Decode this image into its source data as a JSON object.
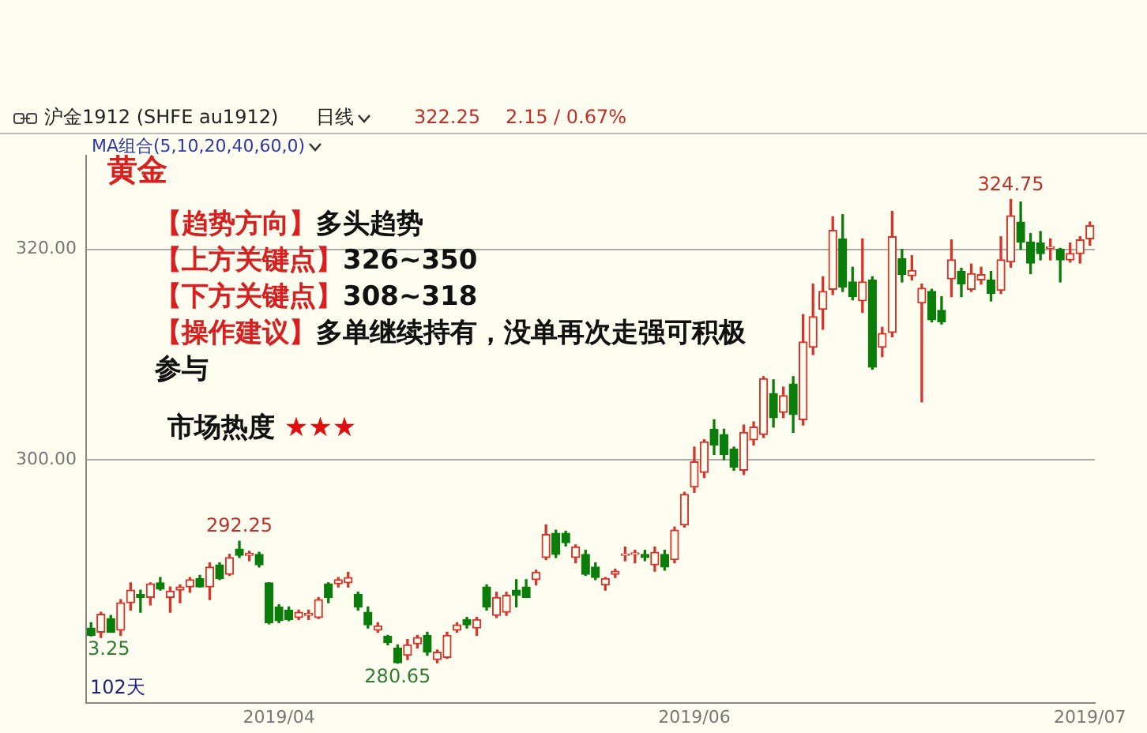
{
  "chart_data": {
    "type": "candlestick",
    "title": "沪金1912 (SHFE au1912)",
    "annotations": [
      "日线",
      "322.25",
      "2.15 / 0.67%",
      "MA组合(5,10,20,40,60,0)",
      "黄金",
      "【趋势方向】多头趋势",
      "【上方关键点】326~350",
      "【下方关键点】308~318",
      "【操作建议】多单继续持有，没单再次走强可积极参与",
      "市场热度 ★★★",
      "102天",
      {
        "text": "292.25",
        "y": 292.25
      },
      {
        "text": "324.75",
        "y": 324.75
      },
      {
        "text": "280.65",
        "y": 280.65
      },
      {
        "text": "3.25",
        "y": 283.25
      }
    ],
    "categories": [
      null,
      null,
      null,
      null,
      null,
      null,
      null,
      null,
      null,
      null,
      null,
      null,
      null,
      null,
      null,
      null,
      null,
      null,
      null,
      "2019/04",
      null,
      null,
      null,
      null,
      null,
      null,
      null,
      null,
      null,
      null,
      null,
      null,
      null,
      null,
      null,
      null,
      null,
      null,
      null,
      null,
      null,
      null,
      null,
      null,
      null,
      null,
      null,
      null,
      null,
      null,
      null,
      null,
      null,
      null,
      null,
      null,
      null,
      null,
      null,
      null,
      null,
      "2019/06",
      null,
      null,
      null,
      null,
      null,
      null,
      null,
      null,
      null,
      null,
      null,
      null,
      null,
      null,
      null,
      null,
      null,
      null,
      null,
      null,
      null,
      null,
      null,
      null,
      null,
      null,
      null,
      null,
      null,
      null,
      null,
      null,
      null,
      null,
      null,
      null,
      null,
      null,
      null,
      "2019/07"
    ],
    "ohlc": [
      [
        284.0,
        284.5,
        283.25,
        283.3
      ],
      [
        283.6,
        285.5,
        283.1,
        285.3
      ],
      [
        284.9,
        285.2,
        283.6,
        283.6
      ],
      [
        283.8,
        286.7,
        283.3,
        286.4
      ],
      [
        286.4,
        288.3,
        285.7,
        287.6
      ],
      [
        287.2,
        287.6,
        285.5,
        286.9
      ],
      [
        286.9,
        288.3,
        286.2,
        288.2
      ],
      [
        288.3,
        288.8,
        287.6,
        287.7
      ],
      [
        286.9,
        287.9,
        285.5,
        287.5
      ],
      [
        287.6,
        288.1,
        286.4,
        287.9
      ],
      [
        287.9,
        288.8,
        287.4,
        288.6
      ],
      [
        288.7,
        289.0,
        287.9,
        287.9
      ],
      [
        287.9,
        290.2,
        286.7,
        289.8
      ],
      [
        290.0,
        290.2,
        288.6,
        288.7
      ],
      [
        289.1,
        291.0,
        289.0,
        290.7
      ],
      [
        291.5,
        292.25,
        290.7,
        290.9
      ],
      [
        290.9,
        291.3,
        290.4,
        291.1
      ],
      [
        291.0,
        291.2,
        289.8,
        290.0
      ],
      [
        288.3,
        288.3,
        284.4,
        284.5
      ],
      [
        286.0,
        286.2,
        284.5,
        284.7
      ],
      [
        285.7,
        286.0,
        284.7,
        284.8
      ],
      [
        285.0,
        285.7,
        284.8,
        285.5
      ],
      [
        285.2,
        285.7,
        284.8,
        285.4
      ],
      [
        285.0,
        286.9,
        284.9,
        286.7
      ],
      [
        288.2,
        288.3,
        286.4,
        286.9
      ],
      [
        288.2,
        288.8,
        287.9,
        288.6
      ],
      [
        288.3,
        289.3,
        287.9,
        288.8
      ],
      [
        287.2,
        287.4,
        285.7,
        286.0
      ],
      [
        285.5,
        286.0,
        284.0,
        284.3
      ],
      [
        283.8,
        284.5,
        283.6,
        284.2
      ],
      [
        283.2,
        283.3,
        282.4,
        282.6
      ],
      [
        282.1,
        282.4,
        280.65,
        280.7
      ],
      [
        281.4,
        282.9,
        281.0,
        282.4
      ],
      [
        282.5,
        283.3,
        282.1,
        283.1
      ],
      [
        283.3,
        283.6,
        281.4,
        281.7
      ],
      [
        281.0,
        281.9,
        280.7,
        281.7
      ],
      [
        281.2,
        283.6,
        281.1,
        283.3
      ],
      [
        283.8,
        284.5,
        283.6,
        284.3
      ],
      [
        284.8,
        285.0,
        284.0,
        284.3
      ],
      [
        284.0,
        285.0,
        283.3,
        284.8
      ],
      [
        287.9,
        288.1,
        285.7,
        286.0
      ],
      [
        285.2,
        287.4,
        285.0,
        286.9
      ],
      [
        285.5,
        287.4,
        285.2,
        287.1
      ],
      [
        287.6,
        288.6,
        286.0,
        287.1
      ],
      [
        287.9,
        288.6,
        286.9,
        286.9
      ],
      [
        288.6,
        289.5,
        288.1,
        289.3
      ],
      [
        290.7,
        293.8,
        290.5,
        292.9
      ],
      [
        293.0,
        293.3,
        290.7,
        291.0
      ],
      [
        293.0,
        293.2,
        291.8,
        292.1
      ],
      [
        290.7,
        291.9,
        290.2,
        291.7
      ],
      [
        291.0,
        291.4,
        289.0,
        289.1
      ],
      [
        289.8,
        290.2,
        288.6,
        288.8
      ],
      [
        288.1,
        288.8,
        287.6,
        288.7
      ],
      [
        289.1,
        289.6,
        288.8,
        289.4
      ],
      [
        290.9,
        291.7,
        290.4,
        291.0
      ],
      [
        291.0,
        291.4,
        290.2,
        291.1
      ],
      [
        291.0,
        291.4,
        290.4,
        290.7
      ],
      [
        290.0,
        291.7,
        289.4,
        291.2
      ],
      [
        291.0,
        291.4,
        289.5,
        289.8
      ],
      [
        290.5,
        293.6,
        290.2,
        293.3
      ],
      [
        293.8,
        296.9,
        293.6,
        296.7
      ],
      [
        297.4,
        301.2,
        296.9,
        299.8
      ],
      [
        298.8,
        301.9,
        298.3,
        301.7
      ],
      [
        302.9,
        303.8,
        300.5,
        301.4
      ],
      [
        302.4,
        302.9,
        300.0,
        300.5
      ],
      [
        301.0,
        301.2,
        299.0,
        299.3
      ],
      [
        299.0,
        303.3,
        298.6,
        302.6
      ],
      [
        301.9,
        303.6,
        301.4,
        303.1
      ],
      [
        302.4,
        307.9,
        302.1,
        307.7
      ],
      [
        306.3,
        307.6,
        303.1,
        304.0
      ],
      [
        304.5,
        306.9,
        304.0,
        306.1
      ],
      [
        307.2,
        307.9,
        302.6,
        304.3
      ],
      [
        303.8,
        313.8,
        303.3,
        311.2
      ],
      [
        310.7,
        316.7,
        310.0,
        313.6
      ],
      [
        314.3,
        317.4,
        312.4,
        316.0
      ],
      [
        316.2,
        323.1,
        315.7,
        321.8
      ],
      [
        321.0,
        323.3,
        316.0,
        316.4
      ],
      [
        316.9,
        318.3,
        315.2,
        315.5
      ],
      [
        315.1,
        321.0,
        314.0,
        316.9
      ],
      [
        317.1,
        317.4,
        308.6,
        308.8
      ],
      [
        310.7,
        312.6,
        309.8,
        312.0
      ],
      [
        312.1,
        323.6,
        311.7,
        321.2
      ],
      [
        319.1,
        320.0,
        316.9,
        317.6
      ],
      [
        317.5,
        319.4,
        317.1,
        318.0
      ],
      [
        314.9,
        316.7,
        305.5,
        316.3
      ],
      [
        316.0,
        316.2,
        313.1,
        313.3
      ],
      [
        314.2,
        315.5,
        312.9,
        313.1
      ],
      [
        317.2,
        320.9,
        315.5,
        319.0
      ],
      [
        317.9,
        318.2,
        315.5,
        316.7
      ],
      [
        316.2,
        318.6,
        316.0,
        317.7
      ],
      [
        317.1,
        318.3,
        316.7,
        317.6
      ],
      [
        317.1,
        317.9,
        315.1,
        315.8
      ],
      [
        316.1,
        321.2,
        315.8,
        319.0
      ],
      [
        318.8,
        324.75,
        318.3,
        323.2
      ],
      [
        322.6,
        324.5,
        320.0,
        320.7
      ],
      [
        320.7,
        321.5,
        317.7,
        318.7
      ],
      [
        320.6,
        321.7,
        319.0,
        319.6
      ],
      [
        320.1,
        321.0,
        319.0,
        320.2
      ],
      [
        320.0,
        320.1,
        316.9,
        319.0
      ],
      [
        319.0,
        320.6,
        318.8,
        319.6
      ],
      [
        319.6,
        321.2,
        318.7,
        320.9
      ],
      [
        321.0,
        322.6,
        320.4,
        322.25
      ]
    ],
    "colors": [
      "#0a7d0a",
      "#d9342b",
      "#0a7d0a",
      "#d9342b",
      "#d9342b",
      "#0a7d0a",
      "#d9342b",
      "#0a7d0a",
      "#d9342b",
      "#d9342b",
      "#d9342b",
      "#0a7d0a",
      "#d9342b",
      "#0a7d0a",
      "#d9342b",
      "#0a7d0a",
      "#d9342b",
      "#0a7d0a",
      "#0a7d0a",
      "#0a7d0a",
      "#0a7d0a",
      "#d9342b",
      "#d9342b",
      "#d9342b",
      "#0a7d0a",
      "#d9342b",
      "#d9342b",
      "#0a7d0a",
      "#0a7d0a",
      "#d9342b",
      "#0a7d0a",
      "#0a7d0a",
      "#d9342b",
      "#d9342b",
      "#0a7d0a",
      "#d9342b",
      "#d9342b",
      "#d9342b",
      "#0a7d0a",
      "#d9342b",
      "#0a7d0a",
      "#d9342b",
      "#d9342b",
      "#0a7d0a",
      "#0a7d0a",
      "#d9342b",
      "#d9342b",
      "#0a7d0a",
      "#0a7d0a",
      "#d9342b",
      "#0a7d0a",
      "#0a7d0a",
      "#d9342b",
      "#d9342b",
      "#d9342b",
      "#d9342b",
      "#0a7d0a",
      "#d9342b",
      "#0a7d0a",
      "#d9342b",
      "#d9342b",
      "#d9342b",
      "#d9342b",
      "#0a7d0a",
      "#0a7d0a",
      "#0a7d0a",
      "#d9342b",
      "#d9342b",
      "#d9342b",
      "#0a7d0a",
      "#d9342b",
      "#0a7d0a",
      "#d9342b",
      "#d9342b",
      "#d9342b",
      "#d9342b",
      "#0a7d0a",
      "#0a7d0a",
      "#d9342b",
      "#0a7d0a",
      "#d9342b",
      "#d9342b",
      "#0a7d0a",
      "#d9342b",
      "#d9342b",
      "#0a7d0a",
      "#0a7d0a",
      "#d9342b",
      "#0a7d0a",
      "#d9342b",
      "#d9342b",
      "#0a7d0a",
      "#d9342b",
      "#d9342b",
      "#0a7d0a",
      "#0a7d0a",
      "#0a7d0a",
      "#d9342b",
      "#0a7d0a",
      "#d9342b",
      "#d9342b",
      "#d9342b"
    ],
    "ylim": [
      276.9,
      328.9
    ],
    "yticks": [
      {
        "value": 300,
        "label": "300.00"
      },
      {
        "value": 320,
        "label": "320.00"
      }
    ],
    "grid": "y"
  }
}
